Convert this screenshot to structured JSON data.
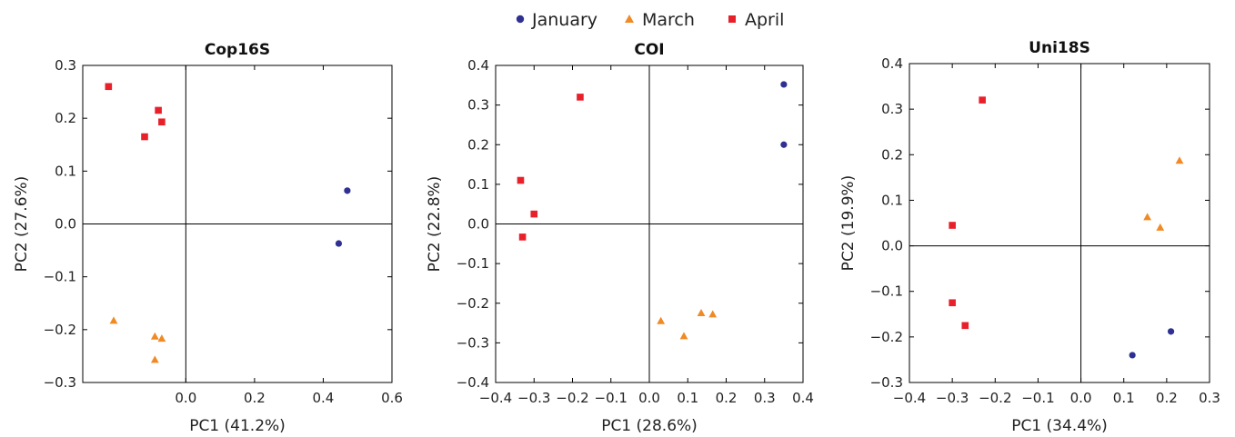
{
  "legend": [
    {
      "name": "January",
      "color": "#2e3192",
      "marker": "circle"
    },
    {
      "name": "March",
      "color": "#f08a24",
      "marker": "triangle"
    },
    {
      "name": "April",
      "color": "#e8202a",
      "marker": "square"
    }
  ],
  "chart_data": [
    {
      "type": "scatter",
      "title": "Cop16S",
      "xlabel": "PC1 (41.2%)",
      "ylabel": "PC2 (27.6%)",
      "xlim": [
        -0.3,
        0.6
      ],
      "ylim": [
        -0.3,
        0.3
      ],
      "xticks": [
        0.0,
        0.2,
        0.4,
        0.6
      ],
      "xtick_labels": [
        "0.0",
        "0.2",
        "0.4",
        "0.6"
      ],
      "yticks": [
        -0.3,
        -0.2,
        -0.1,
        0.0,
        0.1,
        0.2,
        0.3
      ],
      "ytick_labels": [
        "−0.3",
        "−0.2",
        "−0.1",
        "0.0",
        "0.1",
        "0.2",
        "0.3"
      ],
      "grid": false,
      "series": [
        {
          "name": "January",
          "points": [
            [
              0.47,
              0.063
            ],
            [
              0.445,
              -0.037
            ]
          ]
        },
        {
          "name": "March",
          "points": [
            [
              -0.21,
              -0.183
            ],
            [
              -0.09,
              -0.213
            ],
            [
              -0.07,
              -0.217
            ],
            [
              -0.09,
              -0.257
            ]
          ]
        },
        {
          "name": "April",
          "points": [
            [
              -0.225,
              0.26
            ],
            [
              -0.08,
              0.215
            ],
            [
              -0.07,
              0.193
            ],
            [
              -0.12,
              0.165
            ]
          ]
        }
      ]
    },
    {
      "type": "scatter",
      "title": "COI",
      "xlabel": "PC1 (28.6%)",
      "ylabel": "PC2 (22.8%)",
      "xlim": [
        -0.4,
        0.4
      ],
      "ylim": [
        -0.4,
        0.4
      ],
      "xticks": [
        -0.4,
        -0.3,
        -0.2,
        -0.1,
        0.0,
        0.1,
        0.2,
        0.3,
        0.4
      ],
      "xtick_labels": [
        "−0.4",
        "−0.3",
        "−0.2",
        "−0.1",
        "0.0",
        "0.1",
        "0.2",
        "0.3",
        "0.4"
      ],
      "yticks": [
        -0.4,
        -0.3,
        -0.2,
        -0.1,
        0.0,
        0.1,
        0.2,
        0.3,
        0.4
      ],
      "ytick_labels": [
        "−0.4",
        "−0.3",
        "−0.2",
        "−0.1",
        "0.0",
        "0.1",
        "0.2",
        "0.3",
        "0.4"
      ],
      "grid": false,
      "series": [
        {
          "name": "January",
          "points": [
            [
              0.35,
              0.352
            ],
            [
              0.35,
              0.2
            ]
          ]
        },
        {
          "name": "March",
          "points": [
            [
              0.03,
              -0.245
            ],
            [
              0.09,
              -0.283
            ],
            [
              0.135,
              -0.225
            ],
            [
              0.165,
              -0.228
            ]
          ]
        },
        {
          "name": "April",
          "points": [
            [
              -0.18,
              0.32
            ],
            [
              -0.335,
              0.11
            ],
            [
              -0.3,
              0.025
            ],
            [
              -0.33,
              -0.033
            ]
          ]
        }
      ]
    },
    {
      "type": "scatter",
      "title": "Uni18S",
      "xlabel": "PC1 (34.4%)",
      "ylabel": "PC2 (19.9%)",
      "xlim": [
        -0.4,
        0.3
      ],
      "ylim": [
        -0.3,
        0.4
      ],
      "xticks": [
        -0.4,
        -0.3,
        -0.2,
        -0.1,
        0.0,
        0.1,
        0.2,
        0.3
      ],
      "xtick_labels": [
        "−0.4",
        "−0.3",
        "−0.2",
        "−0.1",
        "0.0",
        "0.1",
        "0.2",
        "0.3"
      ],
      "yticks": [
        -0.3,
        -0.2,
        -0.1,
        0.0,
        0.1,
        0.2,
        0.3,
        0.4
      ],
      "ytick_labels": [
        "−0.3",
        "−0.2",
        "−0.1",
        "0.0",
        "0.1",
        "0.2",
        "0.3",
        "0.4"
      ],
      "grid": false,
      "series": [
        {
          "name": "January",
          "points": [
            [
              0.12,
              -0.24
            ],
            [
              0.21,
              -0.188
            ]
          ]
        },
        {
          "name": "March",
          "points": [
            [
              0.155,
              0.063
            ],
            [
              0.185,
              0.04
            ],
            [
              0.23,
              0.187
            ]
          ]
        },
        {
          "name": "April",
          "points": [
            [
              -0.23,
              0.32
            ],
            [
              -0.3,
              0.045
            ],
            [
              -0.3,
              -0.125
            ],
            [
              -0.27,
              -0.175
            ]
          ]
        }
      ]
    }
  ]
}
